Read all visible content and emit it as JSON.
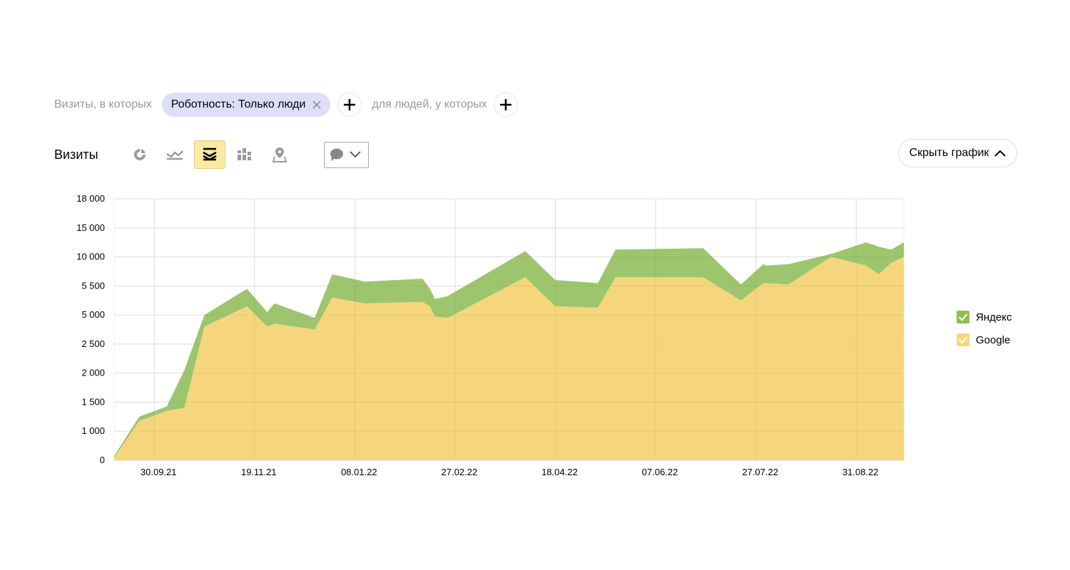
{
  "segment": {
    "visits_label": "Визиты, в которых",
    "filter_chip": "Роботность: Только люди",
    "people_label": "для людей, у которых"
  },
  "toolbar": {
    "metric_label": "Визиты",
    "hide_chart_label": "Скрыть график",
    "icons": [
      "pie-chart-icon",
      "line-chart-icon",
      "stacked-area-icon",
      "bar-chart-icon",
      "map-icon",
      "comment-icon",
      "chevron-down-icon"
    ],
    "active_chart_type": "stacked-area"
  },
  "chart_data": {
    "type": "area",
    "stacked": true,
    "y_ticks": [
      "0",
      "1 000",
      "1 500",
      "2 000",
      "2 500",
      "5 000",
      "5 500",
      "10 000",
      "15 000",
      "18 000"
    ],
    "x_ticks": [
      "30.09.21",
      "19.11.21",
      "08.01.22",
      "27.02.22",
      "18.04.22",
      "07.06.22",
      "27.07.22",
      "31.08.22"
    ],
    "x_tick_positions": [
      1.6,
      5.6,
      9.6,
      13.6,
      17.6,
      21.6,
      25.6,
      29.6
    ],
    "x": [
      0.0,
      1.0,
      2.1,
      2.8,
      3.6,
      5.3,
      6.1,
      6.4,
      8.0,
      8.7,
      10.0,
      12.3,
      12.6,
      12.8,
      13.3,
      16.4,
      17.6,
      19.3,
      20.0,
      23.5,
      25.0,
      25.9,
      26.0,
      26.9,
      28.6,
      30.0,
      30.5,
      31.0,
      31.5
    ],
    "ylim": [
      0,
      9
    ],
    "grid": true,
    "legend_position": "right",
    "series": [
      {
        "name": "Google",
        "color": "#f5d67c",
        "values": [
          0.1,
          1.35,
          1.7,
          1.8,
          4.6,
          5.3,
          4.6,
          4.7,
          4.5,
          5.6,
          5.4,
          5.45,
          5.3,
          4.95,
          4.9,
          6.3,
          5.3,
          5.25,
          6.3,
          6.3,
          5.5,
          6.1,
          6.1,
          6.05,
          7.0,
          6.7,
          6.4,
          6.8,
          7.0
        ],
        "display_values": [
          "0",
          "1 100",
          "1 400",
          "1 500",
          "3 800",
          "4 800",
          "3 800",
          "3 900",
          "3 700",
          "5 100",
          "4 800",
          "4 900",
          "4 800",
          "4 300",
          "4 200",
          "6 000",
          "4 800",
          "4 700",
          "6 000",
          "6 000",
          "5 000",
          "5 800",
          "5 800",
          "5 700",
          "8 000",
          "7 200",
          "6 600",
          "7 600",
          "8 000"
        ]
      },
      {
        "name": "Яндекс",
        "color": "#9dc56e",
        "values": [
          0.05,
          0.15,
          0.15,
          1.3,
          0.4,
          0.6,
          0.5,
          0.7,
          0.4,
          0.8,
          0.75,
          0.8,
          0.6,
          0.6,
          0.75,
          0.9,
          0.9,
          0.85,
          0.95,
          1.0,
          0.55,
          0.65,
          0.6,
          0.7,
          0.1,
          0.8,
          0.95,
          0.45,
          0.5
        ],
        "display_values": [
          "50",
          "300",
          "300",
          "1 800",
          "400",
          "1 500",
          "1 100",
          "1 600",
          "1 000",
          "1 800",
          "1 900",
          "2 000",
          "1 500",
          "1 500",
          "1 800",
          "2 200",
          "2 100",
          "2 000",
          "2 200",
          "2 300",
          "1 200",
          "1 400",
          "1 300",
          "1 500",
          "200",
          "1 800",
          "2 300",
          "1 100",
          "1 300"
        ]
      }
    ]
  }
}
